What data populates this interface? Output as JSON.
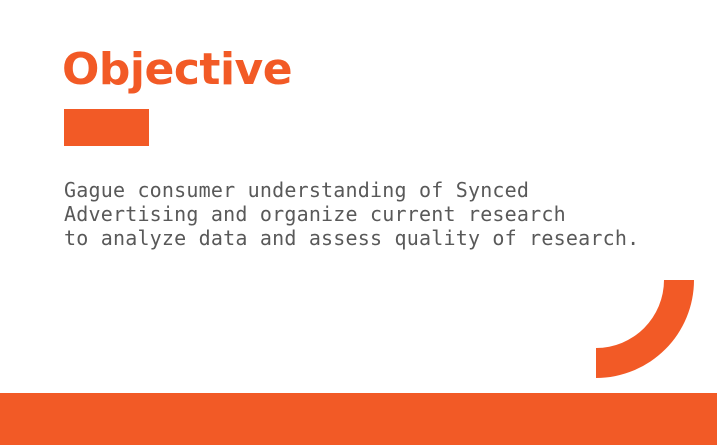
{
  "slide": {
    "title": "Objective",
    "body_lines": [
      "Gague consumer understanding of Synced",
      "Advertising and organize current research",
      "to analyze data and assess quality of research."
    ]
  },
  "colors": {
    "accent": "#f25a26",
    "text": "#595959",
    "background": "#ffffff"
  },
  "decorations": {
    "accent_shape": "orange-rectangle",
    "corner_shape": "quarter-ring-arc",
    "footer_shape": "orange-bar"
  }
}
